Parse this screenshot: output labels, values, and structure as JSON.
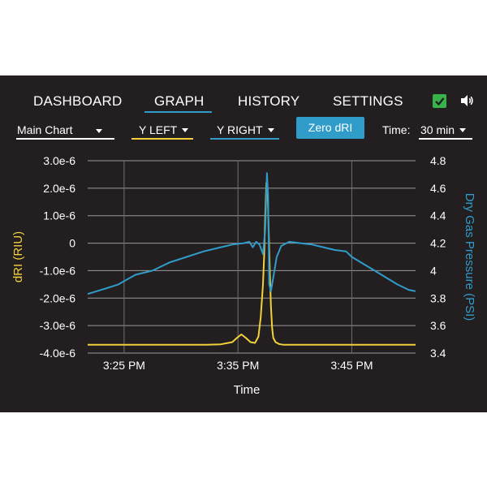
{
  "nav": {
    "tabs": [
      {
        "label": "DASHBOARD"
      },
      {
        "label": "GRAPH"
      },
      {
        "label": "HISTORY"
      },
      {
        "label": "SETTINGS"
      }
    ],
    "active_tab": "GRAPH",
    "checkbox_checked": true,
    "icons": {
      "checkbox": "checkbox-checked-icon",
      "speaker": "speaker-icon"
    }
  },
  "controls": {
    "chart_select": "Main Chart",
    "y_left": "Y LEFT",
    "y_right": "Y RIGHT",
    "zero_button": "Zero dRI",
    "time_label": "Time:",
    "time_value": "30 min"
  },
  "colors": {
    "background": "#231f20",
    "accent": "#2f9cc9",
    "left_series": "#f2d23c",
    "right_series": "#2f9cc9",
    "check": "#37b34a"
  },
  "chart_data": {
    "type": "line",
    "xlabel": "Time",
    "ylabel_left": "dRI (RIU)",
    "ylabel_right": "Dry Gas Pressure (PSI)",
    "x_ticks": [
      "3:25 PM",
      "3:35 PM",
      "3:45 PM"
    ],
    "x_tick_minutes": [
      25,
      35,
      45
    ],
    "xlim_minutes": [
      21.8,
      50.6
    ],
    "y_left_ticks": [
      "3.0e-6",
      "2.0e-6",
      "1.0e-6",
      "0",
      "-1.0e-6",
      "-2.0e-6",
      "-3.0e-6",
      "-4.0e-6"
    ],
    "y_left_values": [
      3e-06,
      2e-06,
      1e-06,
      0,
      -1e-06,
      -2e-06,
      -3e-06,
      -4e-06
    ],
    "ylim_left": [
      -4e-06,
      3e-06
    ],
    "y_right_ticks": [
      "4.8",
      "4.6",
      "4.4",
      "4.2",
      "4",
      "3.8",
      "3.6",
      "3.4"
    ],
    "y_right_values": [
      4.8,
      4.6,
      4.4,
      4.2,
      4.0,
      3.8,
      3.6,
      3.4
    ],
    "ylim_right": [
      3.4,
      4.8
    ],
    "grid": true,
    "series": [
      {
        "axis": "left",
        "color": "#f2d23c",
        "x": [
          21.8,
          25.0,
          28.0,
          30.0,
          32.0,
          33.5,
          34.5,
          34.9,
          35.3,
          35.7,
          36.1,
          36.5,
          36.8,
          37.0,
          37.2,
          37.3,
          37.4,
          37.5,
          37.6,
          37.7,
          37.8,
          37.9,
          38.0,
          38.1,
          38.3,
          38.6,
          39.0,
          40.0,
          45.0,
          50.6
        ],
        "y": [
          -3.7e-06,
          -3.7e-06,
          -3.7e-06,
          -3.7e-06,
          -3.7e-06,
          -3.68e-06,
          -3.6e-06,
          -3.45e-06,
          -3.32e-06,
          -3.45e-06,
          -3.6e-06,
          -3.63e-06,
          -3.4e-06,
          -2.7e-06,
          -1.5e-06,
          -5e-07,
          1e-06,
          2.2e-06,
          2e-06,
          5e-07,
          -1e-06,
          -2.3e-06,
          -3.1e-06,
          -3.45e-06,
          -3.6e-06,
          -3.67e-06,
          -3.7e-06,
          -3.7e-06,
          -3.7e-06,
          -3.7e-06
        ]
      },
      {
        "axis": "right",
        "color": "#2f9cc9",
        "x": [
          21.8,
          23.0,
          24.5,
          26.0,
          27.5,
          29.0,
          30.5,
          32.0,
          33.5,
          34.5,
          35.5,
          36.0,
          36.3,
          36.6,
          36.9,
          37.2,
          37.4,
          37.55,
          37.65,
          37.75,
          37.9,
          38.1,
          38.4,
          38.8,
          39.5,
          40.5,
          41.5,
          42.5,
          43.5,
          44.5,
          45.0,
          46.0,
          47.0,
          48.0,
          49.0,
          50.0,
          50.6
        ],
        "y": [
          3.83,
          3.86,
          3.9,
          3.97,
          4.0,
          4.06,
          4.1,
          4.14,
          4.17,
          4.19,
          4.2,
          4.21,
          4.17,
          4.21,
          4.19,
          4.12,
          4.3,
          4.71,
          4.55,
          3.9,
          3.85,
          3.95,
          4.1,
          4.18,
          4.21,
          4.2,
          4.19,
          4.17,
          4.15,
          4.14,
          4.1,
          4.05,
          4.0,
          3.95,
          3.9,
          3.86,
          3.85
        ]
      }
    ]
  }
}
